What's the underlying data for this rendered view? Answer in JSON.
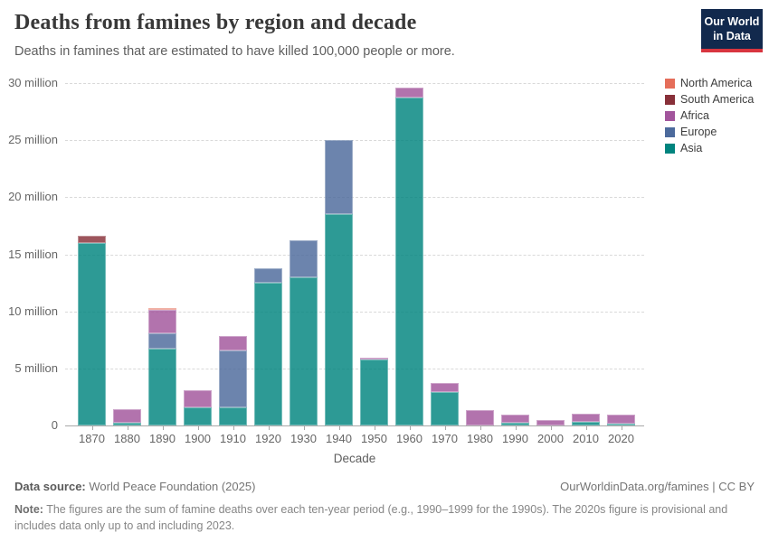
{
  "header": {
    "title": "Deaths from famines by region and decade",
    "subtitle": "Deaths in famines that are estimated to have killed 100,000 people or more."
  },
  "logo": {
    "line1": "Our World",
    "line2": "in Data",
    "bg_color": "#12294d",
    "accent_color": "#d8353f"
  },
  "legend": [
    {
      "label": "North America",
      "color": "#E56E5A"
    },
    {
      "label": "South America",
      "color": "#883039"
    },
    {
      "label": "Africa",
      "color": "#A2559C"
    },
    {
      "label": "Europe",
      "color": "#4C6A9C"
    },
    {
      "label": "Asia",
      "color": "#00847E"
    }
  ],
  "chart_data": {
    "type": "bar",
    "stacked": true,
    "title": "Deaths from famines by region and decade",
    "xlabel": "Decade",
    "ylabel": "",
    "ylim": [
      0,
      30
    ],
    "grid": "dashed-horizontal",
    "legend_position": "right",
    "units": "million deaths",
    "categories": [
      "1870",
      "1880",
      "1890",
      "1900",
      "1910",
      "1920",
      "1930",
      "1940",
      "1950",
      "1960",
      "1970",
      "1980",
      "1990",
      "2000",
      "2010",
      "2020"
    ],
    "stack_order_bottom_to_top": [
      "Asia",
      "Europe",
      "Africa",
      "South America",
      "North America"
    ],
    "series": [
      {
        "name": "Asia",
        "color": "#00847E",
        "values": [
          16.0,
          0.2,
          6.7,
          1.55,
          1.55,
          12.5,
          13.0,
          18.5,
          5.75,
          28.7,
          2.95,
          0,
          0.25,
          0,
          0.3,
          0.15
        ]
      },
      {
        "name": "Europe",
        "color": "#4C6A9C",
        "values": [
          0,
          0,
          1.4,
          0,
          5.05,
          1.3,
          3.2,
          6.5,
          0,
          0,
          0,
          0,
          0,
          0,
          0,
          0
        ]
      },
      {
        "name": "Africa",
        "color": "#A2559C",
        "values": [
          0,
          1.2,
          2.0,
          1.5,
          1.2,
          0,
          0,
          0,
          0.15,
          0.9,
          0.75,
          1.35,
          0.7,
          0.45,
          0.75,
          0.8
        ]
      },
      {
        "name": "South America",
        "color": "#883039",
        "values": [
          0.6,
          0,
          0,
          0,
          0,
          0,
          0,
          0,
          0,
          0,
          0,
          0,
          0,
          0,
          0,
          0
        ]
      },
      {
        "name": "North America",
        "color": "#E56E5A",
        "values": [
          0,
          0,
          0.2,
          0,
          0,
          0,
          0,
          0,
          0,
          0,
          0,
          0,
          0,
          0,
          0,
          0
        ]
      }
    ],
    "y_ticks": [
      0,
      5,
      10,
      15,
      20,
      25,
      30
    ],
    "y_tick_labels": [
      "0",
      "5 million",
      "10 million",
      "15 million",
      "20 million",
      "25 million",
      "30 million"
    ]
  },
  "footer": {
    "datasource_label": "Data source:",
    "datasource_value": " World Peace Foundation (2025)",
    "link": "OurWorldinData.org/famines | CC BY",
    "note_label": "Note:",
    "note_text": " The figures are the sum of famine deaths over each ten-year period (e.g., 1990–1999 for the 1990s). The 2020s figure is provisional and includes data only up to and including 2023."
  }
}
